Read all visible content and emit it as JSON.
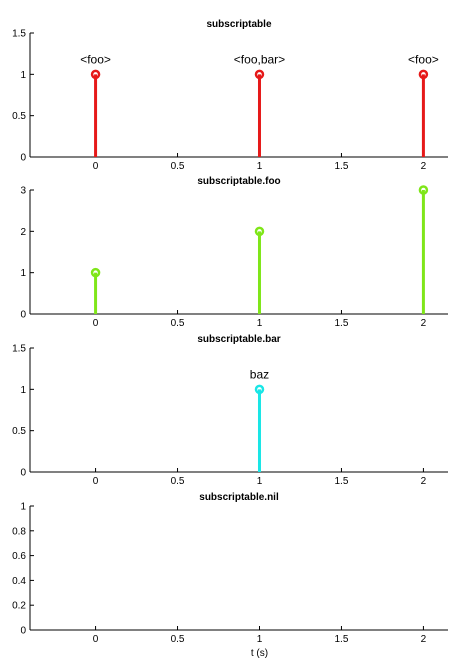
{
  "chart_data": [
    {
      "type": "stem",
      "title": "subscriptable",
      "color": "#e61919",
      "x": [
        0,
        1,
        2
      ],
      "values": [
        1,
        1,
        1
      ],
      "annotations": [
        "<foo>",
        "<foo,bar>",
        "<foo>"
      ],
      "xlim": [
        -0.4,
        2.15
      ],
      "ylim": [
        0,
        1.5
      ],
      "xticks": [
        0,
        0.5,
        1,
        1.5,
        2
      ],
      "yticks": [
        0,
        0.5,
        1,
        1.5
      ],
      "xtick_labels": [
        "0",
        "0.5",
        "1",
        "1.5",
        "2"
      ],
      "ytick_labels": [
        "0",
        "0.5",
        "1",
        "1.5"
      ],
      "xlabel": "",
      "grid": false
    },
    {
      "type": "stem",
      "title": "subscriptable.foo",
      "color": "#7fe619",
      "x": [
        0,
        1,
        2
      ],
      "values": [
        1,
        2,
        3
      ],
      "annotations": [
        "",
        "",
        ""
      ],
      "xlim": [
        -0.4,
        2.15
      ],
      "ylim": [
        0,
        3
      ],
      "xticks": [
        0,
        0.5,
        1,
        1.5,
        2
      ],
      "yticks": [
        0,
        1,
        2,
        3
      ],
      "xtick_labels": [
        "0",
        "0.5",
        "1",
        "1.5",
        "2"
      ],
      "ytick_labels": [
        "0",
        "1",
        "2",
        "3"
      ],
      "xlabel": "",
      "grid": false
    },
    {
      "type": "stem",
      "title": "subscriptable.bar",
      "color": "#19e6e6",
      "x": [
        1
      ],
      "values": [
        1
      ],
      "annotations": [
        "baz"
      ],
      "xlim": [
        -0.4,
        2.15
      ],
      "ylim": [
        0,
        1.5
      ],
      "xticks": [
        0,
        0.5,
        1,
        1.5,
        2
      ],
      "yticks": [
        0,
        0.5,
        1,
        1.5
      ],
      "xtick_labels": [
        "0",
        "0.5",
        "1",
        "1.5",
        "2"
      ],
      "ytick_labels": [
        "0",
        "0.5",
        "1",
        "1.5"
      ],
      "xlabel": "",
      "grid": false
    },
    {
      "type": "stem",
      "title": "subscriptable.nil",
      "color": "#000000",
      "x": [],
      "values": [],
      "annotations": [],
      "xlim": [
        -0.4,
        2.15
      ],
      "ylim": [
        0,
        1
      ],
      "xticks": [
        0,
        0.5,
        1,
        1.5,
        2
      ],
      "yticks": [
        0,
        0.2,
        0.4,
        0.6,
        0.8,
        1
      ],
      "xtick_labels": [
        "0",
        "0.5",
        "1",
        "1.5",
        "2"
      ],
      "ytick_labels": [
        "0",
        "0.2",
        "0.4",
        "0.6",
        "0.8",
        "1"
      ],
      "xlabel": "t (s)",
      "grid": false
    }
  ]
}
